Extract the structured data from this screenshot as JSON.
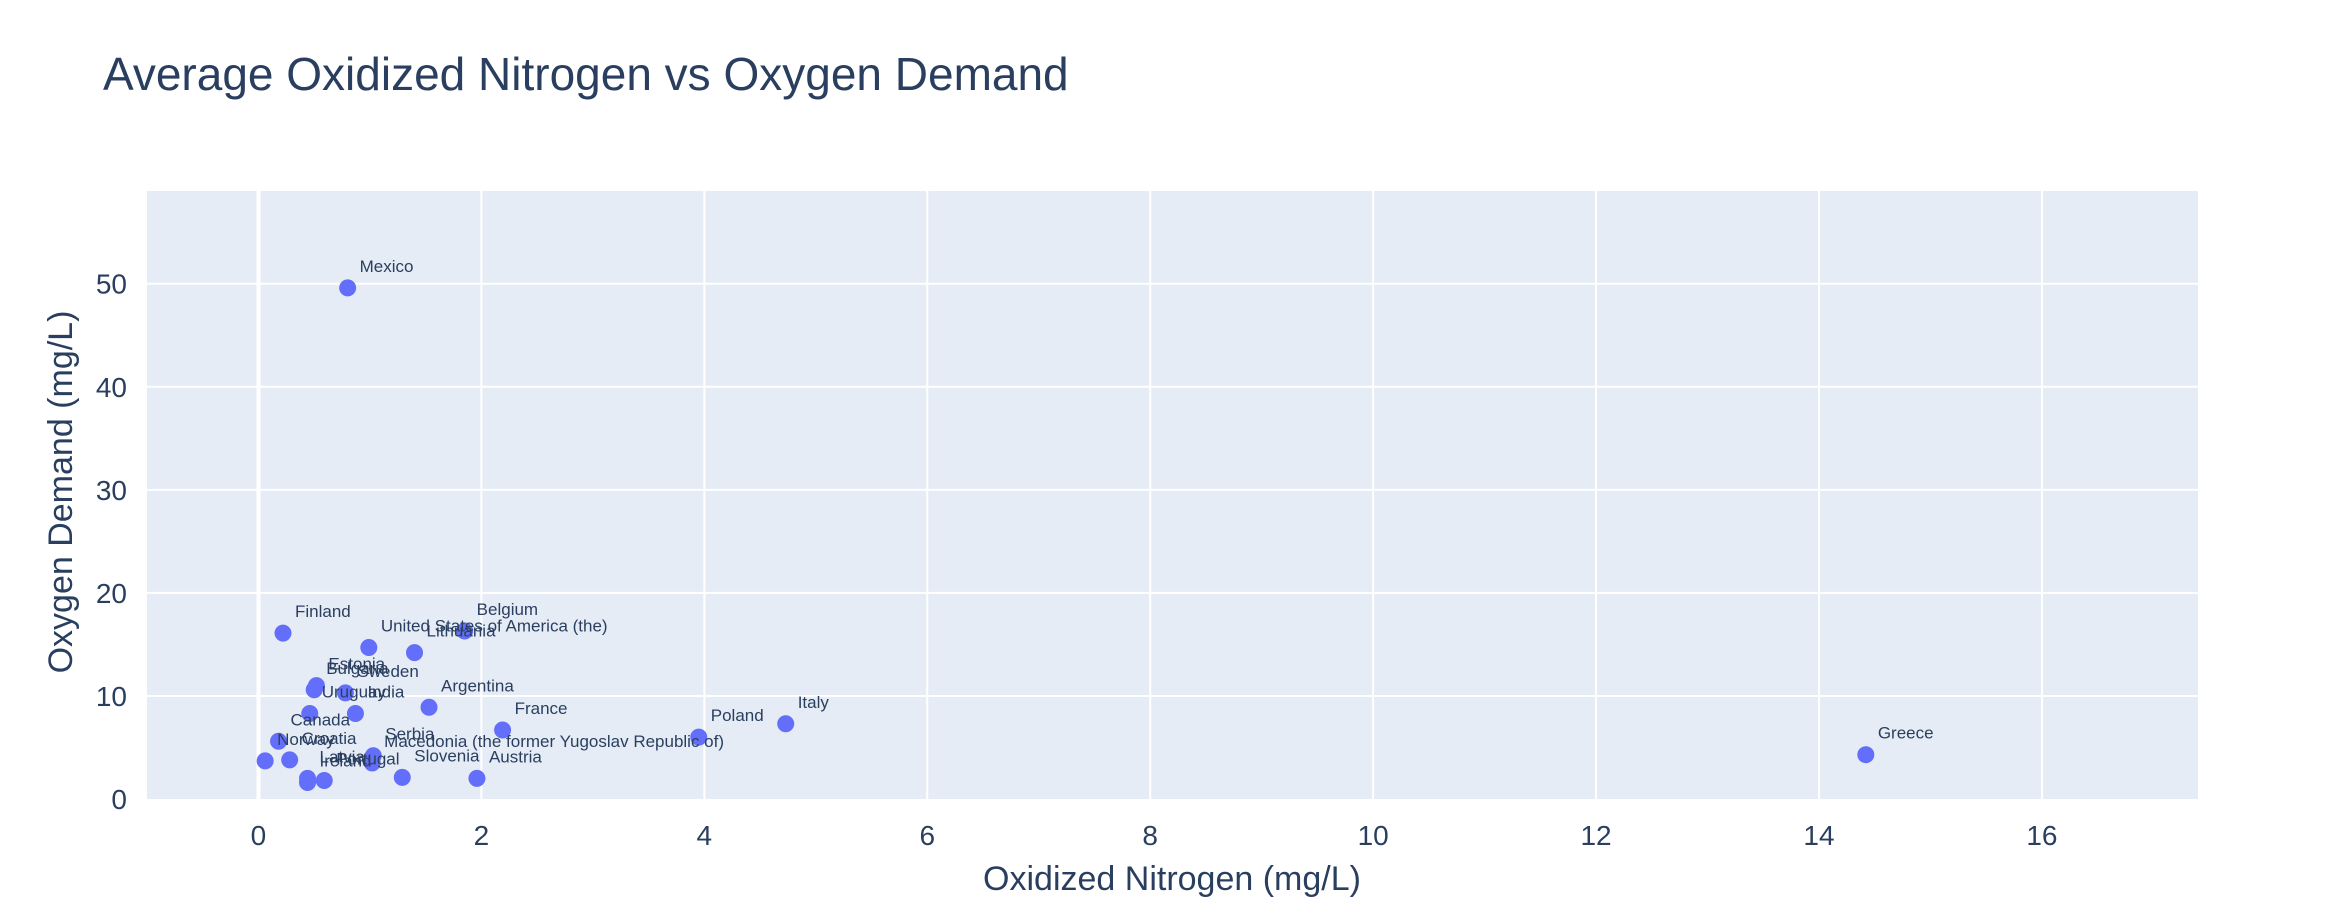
{
  "chart_data": {
    "type": "scatter",
    "title": "Average Oxidized Nitrogen vs Oxygen Demand",
    "xlabel": "Oxidized Nitrogen (mg/L)",
    "ylabel": "Oxygen Demand (mg/L)",
    "xlim": [
      -1,
      17.4
    ],
    "ylim": [
      0,
      59
    ],
    "x_ticks": [
      0,
      2,
      4,
      6,
      8,
      10,
      12,
      14,
      16
    ],
    "y_ticks": [
      0,
      10,
      20,
      30,
      40,
      50
    ],
    "grid": true,
    "marker_color": "#636efa",
    "plot_bg": "#e5ecf6",
    "points": [
      {
        "label": "Mexico",
        "x": 0.8,
        "y": 49.6
      },
      {
        "label": "Finland",
        "x": 0.22,
        "y": 16.1
      },
      {
        "label": "Belgium",
        "x": 1.85,
        "y": 16.3
      },
      {
        "label": "United States of America (the)",
        "x": 0.99,
        "y": 14.7
      },
      {
        "label": "Lithuania",
        "x": 1.4,
        "y": 14.2
      },
      {
        "label": "Estonia",
        "x": 0.52,
        "y": 11.0
      },
      {
        "label": "Bulgaria",
        "x": 0.5,
        "y": 10.6
      },
      {
        "label": "Sweden",
        "x": 0.78,
        "y": 10.3
      },
      {
        "label": "Uruguay",
        "x": 0.46,
        "y": 8.3
      },
      {
        "label": "India",
        "x": 0.87,
        "y": 8.3
      },
      {
        "label": "Argentina",
        "x": 1.53,
        "y": 8.9
      },
      {
        "label": "France",
        "x": 2.19,
        "y": 6.7
      },
      {
        "label": "Poland",
        "x": 3.95,
        "y": 6.0
      },
      {
        "label": "Italy",
        "x": 4.73,
        "y": 7.3
      },
      {
        "label": "Greece",
        "x": 14.42,
        "y": 4.3
      },
      {
        "label": "Canada",
        "x": 0.18,
        "y": 5.6
      },
      {
        "label": "Croatia",
        "x": 0.28,
        "y": 3.8
      },
      {
        "label": "Norway",
        "x": 0.06,
        "y": 3.7
      },
      {
        "label": "Serbia",
        "x": 1.03,
        "y": 4.2
      },
      {
        "label": "Macedonia (the former Yugoslav Republic of)",
        "x": 1.02,
        "y": 3.5
      },
      {
        "label": "Latvia",
        "x": 0.44,
        "y": 2.0
      },
      {
        "label": "Portugal",
        "x": 0.59,
        "y": 1.8
      },
      {
        "label": "Ireland",
        "x": 0.44,
        "y": 1.6
      },
      {
        "label": "Slovenia",
        "x": 1.29,
        "y": 2.1
      },
      {
        "label": "Austria",
        "x": 1.96,
        "y": 2.0
      }
    ]
  }
}
